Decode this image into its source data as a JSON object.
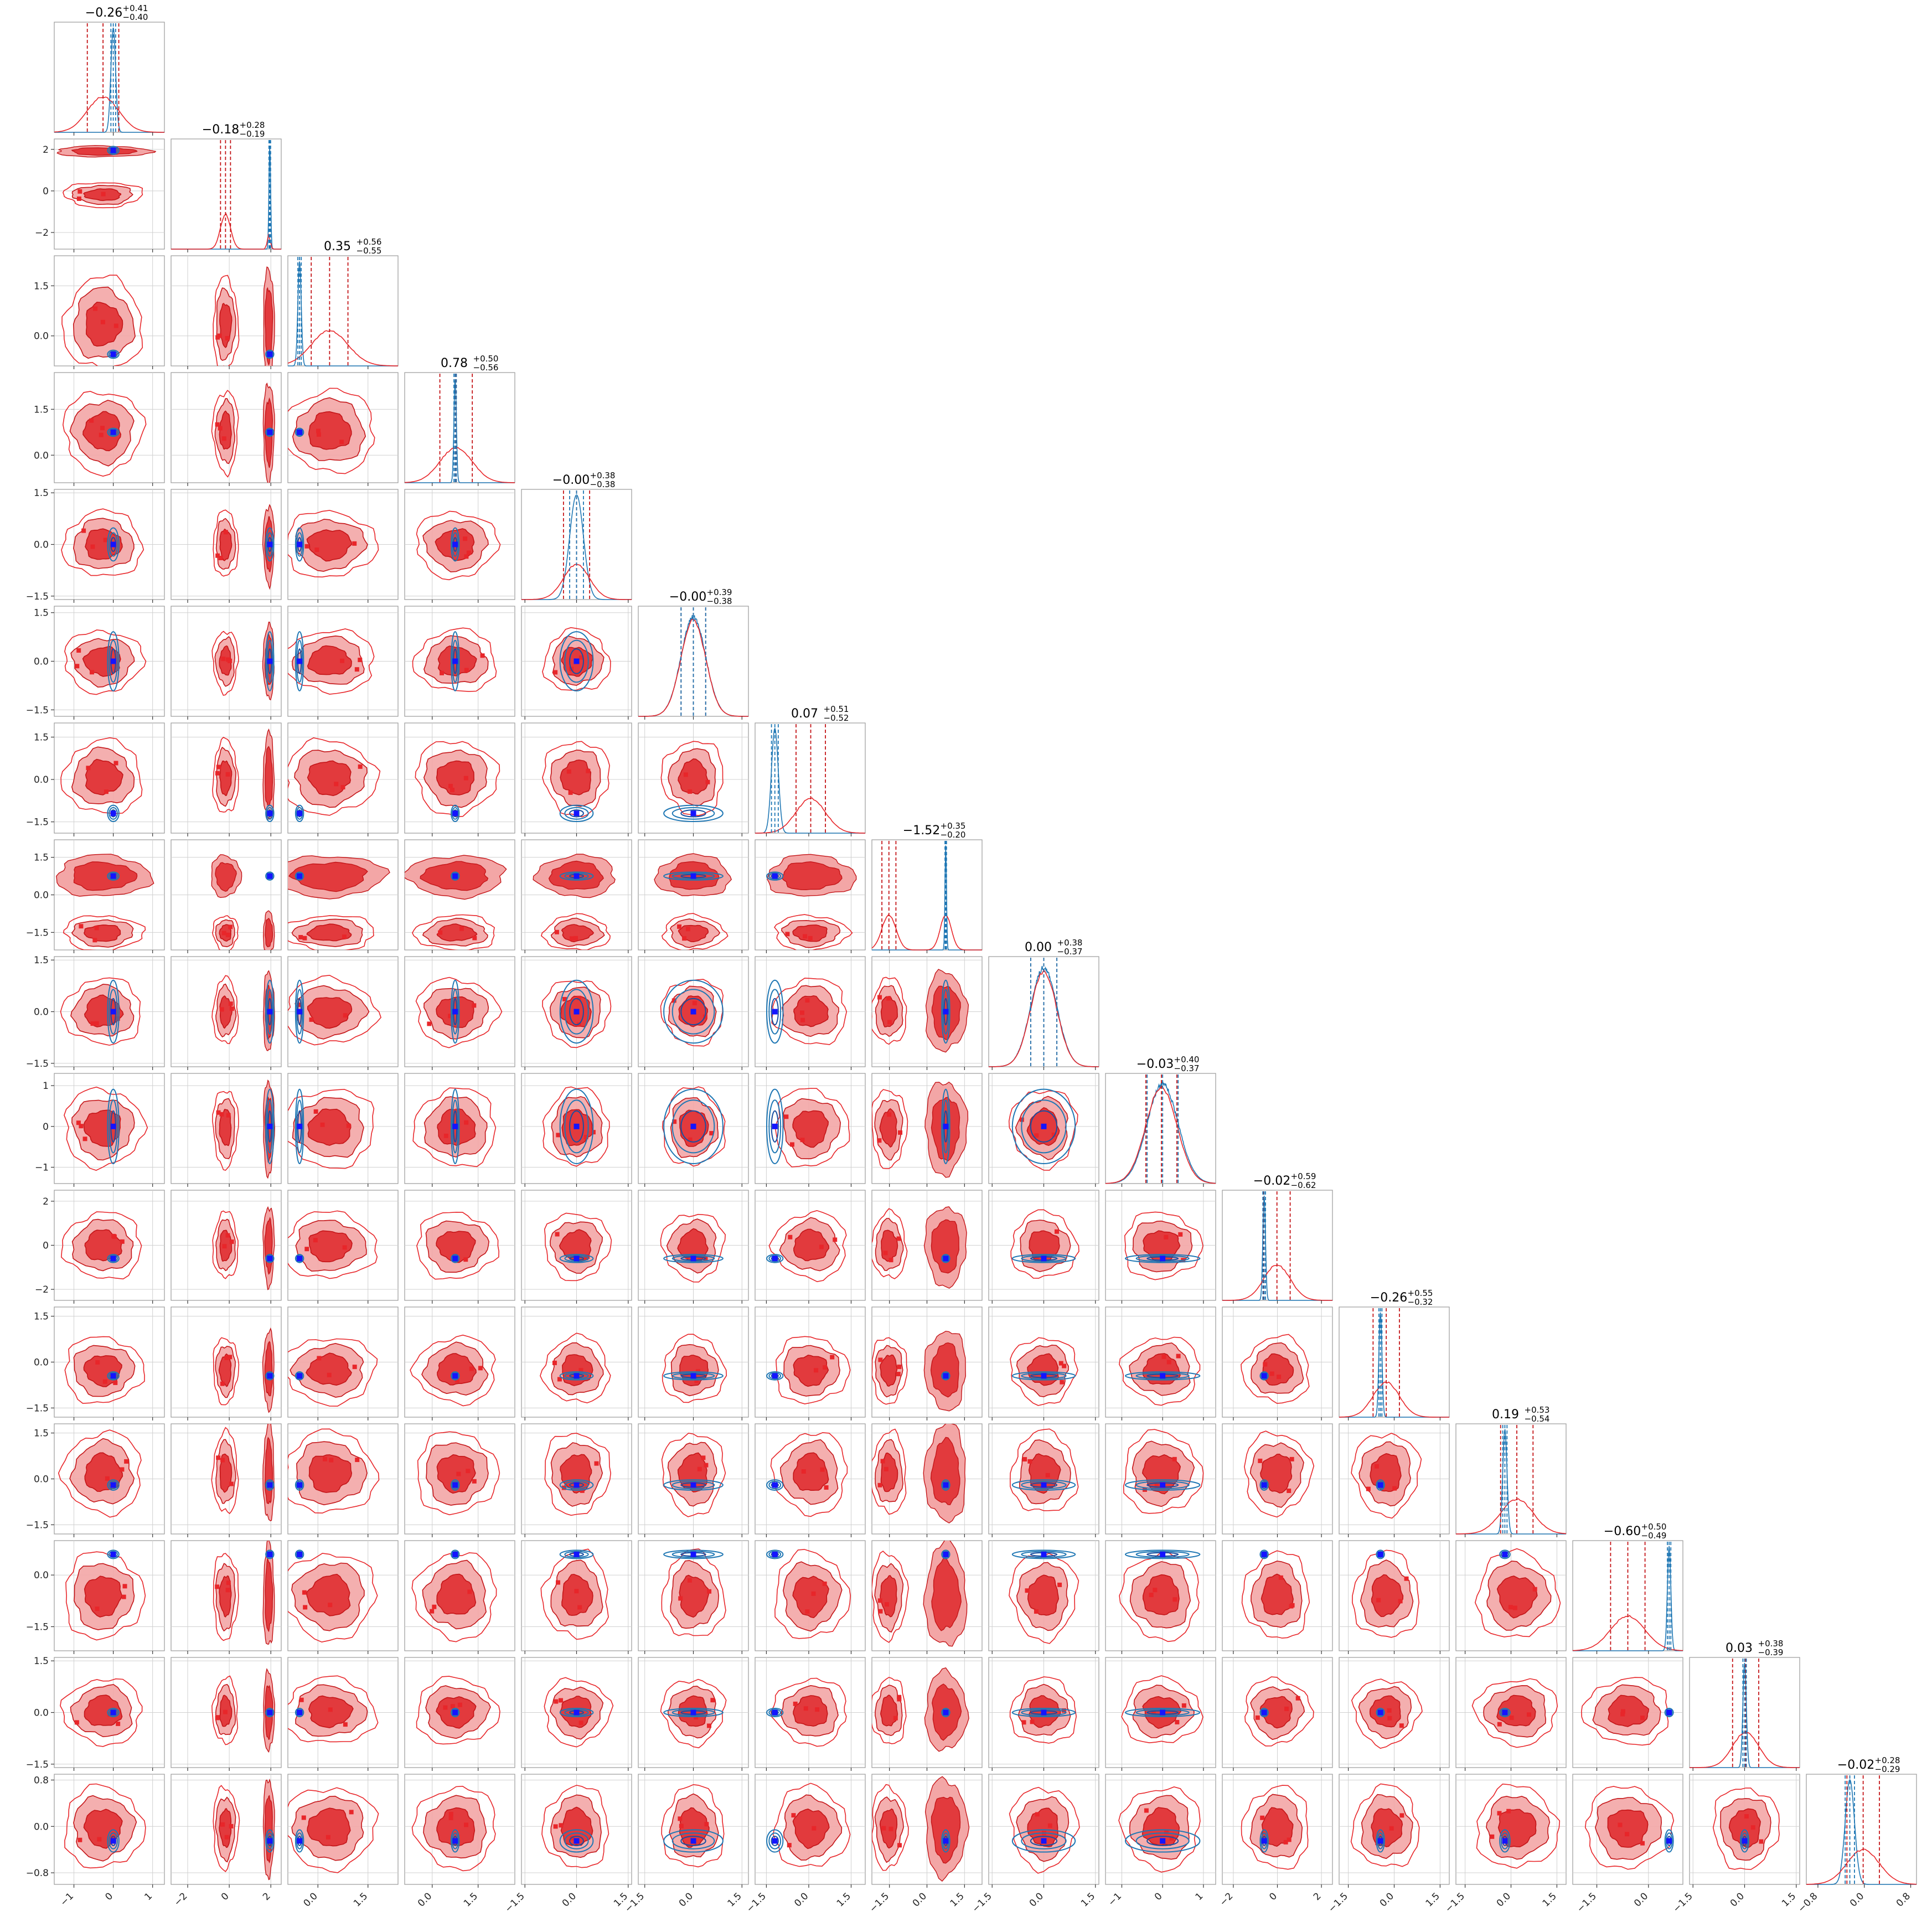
{
  "colors": {
    "red": "#e8262a",
    "red_dark": "#c41518",
    "red_light": "#f3a6a6",
    "red_mid": "#e23a3d",
    "blue": "#1f77b4",
    "blue_dark": "#1a4fa0",
    "marker_blue": "#1414ff",
    "grid": "#d0d0d0"
  },
  "chart_data": {
    "type": "corner",
    "dimensions": 16,
    "grid": true,
    "titles": [
      {
        "median": "−0.26",
        "plus": "+0.41",
        "minus": "−0.40"
      },
      {
        "median": "−0.18",
        "plus": "+0.28",
        "minus": "−0.19"
      },
      {
        "median": "0.35",
        "plus": "+0.56",
        "minus": "−0.55"
      },
      {
        "median": "0.78",
        "plus": "+0.50",
        "minus": "−0.56"
      },
      {
        "median": "−0.00",
        "plus": "+0.38",
        "minus": "−0.38"
      },
      {
        "median": "−0.00",
        "plus": "+0.39",
        "minus": "−0.38"
      },
      {
        "median": "0.07",
        "plus": "+0.51",
        "minus": "−0.52"
      },
      {
        "median": "−1.52",
        "plus": "+0.35",
        "minus": "−0.20"
      },
      {
        "median": "0.00",
        "plus": "+0.38",
        "minus": "−0.37"
      },
      {
        "median": "−0.03",
        "plus": "+0.40",
        "minus": "−0.37"
      },
      {
        "median": "−0.02",
        "plus": "+0.59",
        "minus": "−0.62"
      },
      {
        "median": "−0.26",
        "plus": "+0.55",
        "minus": "−0.32"
      },
      {
        "median": "0.19",
        "plus": "+0.53",
        "minus": "−0.54"
      },
      {
        "median": "−0.60",
        "plus": "+0.50",
        "minus": "−0.49"
      },
      {
        "median": "0.03",
        "plus": "+0.38",
        "minus": "−0.39"
      },
      {
        "median": "−0.02",
        "plus": "+0.28",
        "minus": "−0.29"
      }
    ],
    "ranges": [
      [
        -1.5,
        1.3
      ],
      [
        -2.8,
        2.5
      ],
      [
        -0.9,
        2.4
      ],
      [
        -0.9,
        2.7
      ],
      [
        -1.6,
        1.6
      ],
      [
        -1.7,
        1.7
      ],
      [
        -1.9,
        2.0
      ],
      [
        -2.2,
        2.2
      ],
      [
        -1.6,
        1.6
      ],
      [
        -1.4,
        1.3
      ],
      [
        -2.5,
        2.5
      ],
      [
        -1.8,
        1.8
      ],
      [
        -1.8,
        1.8
      ],
      [
        -2.2,
        1.0
      ],
      [
        -1.6,
        1.6
      ],
      [
        -1.0,
        0.9
      ]
    ],
    "y_ticks": [
      [],
      [
        {
          "v": 2,
          "t": "2"
        },
        {
          "v": 0,
          "t": "0"
        },
        {
          "v": -2,
          "t": "−2"
        }
      ],
      [
        {
          "v": 1.5,
          "t": "1.5"
        },
        {
          "v": 0,
          "t": "0.0"
        }
      ],
      [
        {
          "v": 1.5,
          "t": "1.5"
        },
        {
          "v": 0,
          "t": "0.0"
        }
      ],
      [
        {
          "v": 1.5,
          "t": "1.5"
        },
        {
          "v": 0,
          "t": "0.0"
        },
        {
          "v": -1.5,
          "t": "−1.5"
        }
      ],
      [
        {
          "v": 1.5,
          "t": "1.5"
        },
        {
          "v": 0,
          "t": "0.0"
        },
        {
          "v": -1.5,
          "t": "−1.5"
        }
      ],
      [
        {
          "v": 1.5,
          "t": "1.5"
        },
        {
          "v": 0,
          "t": "0.0"
        },
        {
          "v": -1.5,
          "t": "−1.5"
        }
      ],
      [
        {
          "v": 1.5,
          "t": "1.5"
        },
        {
          "v": 0,
          "t": "0.0"
        },
        {
          "v": -1.5,
          "t": "−1.5"
        }
      ],
      [
        {
          "v": 1.5,
          "t": "1.5"
        },
        {
          "v": 0,
          "t": "0.0"
        },
        {
          "v": -1.5,
          "t": "−1.5"
        }
      ],
      [
        {
          "v": 1,
          "t": "1"
        },
        {
          "v": 0,
          "t": "0"
        },
        {
          "v": -1,
          "t": "−1"
        }
      ],
      [
        {
          "v": 2,
          "t": "2"
        },
        {
          "v": 0,
          "t": "0"
        },
        {
          "v": -2,
          "t": "−2"
        }
      ],
      [
        {
          "v": 1.5,
          "t": "1.5"
        },
        {
          "v": 0,
          "t": "0.0"
        },
        {
          "v": -1.5,
          "t": "−1.5"
        }
      ],
      [
        {
          "v": 1.5,
          "t": "1.5"
        },
        {
          "v": 0,
          "t": "0.0"
        },
        {
          "v": -1.5,
          "t": "−1.5"
        }
      ],
      [
        {
          "v": 0,
          "t": "0.0"
        },
        {
          "v": -1.5,
          "t": "−1.5"
        }
      ],
      [
        {
          "v": 1.5,
          "t": "1.5"
        },
        {
          "v": 0,
          "t": "0.0"
        },
        {
          "v": -1.5,
          "t": "−1.5"
        }
      ],
      [
        {
          "v": 0.8,
          "t": "0.8"
        },
        {
          "v": 0,
          "t": "0.0"
        },
        {
          "v": -0.8,
          "t": "−0.8"
        }
      ]
    ],
    "x_ticks": [
      [
        {
          "v": -1,
          "t": "−1"
        },
        {
          "v": 0,
          "t": "0"
        },
        {
          "v": 1,
          "t": "1"
        }
      ],
      [
        {
          "v": -2,
          "t": "−2"
        },
        {
          "v": 0,
          "t": "0"
        },
        {
          "v": 2,
          "t": "2"
        }
      ],
      [
        {
          "v": 0,
          "t": "0.0"
        },
        {
          "v": 1.5,
          "t": "1.5"
        }
      ],
      [
        {
          "v": 0,
          "t": "0.0"
        },
        {
          "v": 1.5,
          "t": "1.5"
        }
      ],
      [
        {
          "v": -1.5,
          "t": "−1.5"
        },
        {
          "v": 0,
          "t": "0.0"
        },
        {
          "v": 1.5,
          "t": "1.5"
        }
      ],
      [
        {
          "v": -1.5,
          "t": "−1.5"
        },
        {
          "v": 0,
          "t": "0.0"
        },
        {
          "v": 1.5,
          "t": "1.5"
        }
      ],
      [
        {
          "v": -1.5,
          "t": "−1.5"
        },
        {
          "v": 0,
          "t": "0.0"
        },
        {
          "v": 1.5,
          "t": "1.5"
        }
      ],
      [
        {
          "v": -1.5,
          "t": "−1.5"
        },
        {
          "v": 0,
          "t": "0.0"
        },
        {
          "v": 1.5,
          "t": "1.5"
        }
      ],
      [
        {
          "v": -1.5,
          "t": "−1.5"
        },
        {
          "v": 0,
          "t": "0.0"
        },
        {
          "v": 1.5,
          "t": "1.5"
        }
      ],
      [
        {
          "v": -1,
          "t": "−1"
        },
        {
          "v": 0,
          "t": "0"
        },
        {
          "v": 1,
          "t": "1"
        }
      ],
      [
        {
          "v": -2,
          "t": "−2"
        },
        {
          "v": 0,
          "t": "0"
        },
        {
          "v": 2,
          "t": "2"
        }
      ],
      [
        {
          "v": -1.5,
          "t": "−1.5"
        },
        {
          "v": 0,
          "t": "0.0"
        },
        {
          "v": 1.5,
          "t": "1.5"
        }
      ],
      [
        {
          "v": -1.5,
          "t": "−1.5"
        },
        {
          "v": 0,
          "t": "0.0"
        },
        {
          "v": 1.5,
          "t": "1.5"
        }
      ],
      [
        {
          "v": -1.5,
          "t": "−1.5"
        },
        {
          "v": 0,
          "t": "0.0"
        }
      ],
      [
        {
          "v": -1.5,
          "t": "−1.5"
        },
        {
          "v": 0,
          "t": "0.0"
        },
        {
          "v": 1.5,
          "t": "1.5"
        }
      ],
      [
        {
          "v": -0.8,
          "t": "−0.8"
        },
        {
          "v": 0,
          "t": "0.0"
        },
        {
          "v": 0.8,
          "t": "0.8"
        }
      ]
    ],
    "red_posterior": {
      "center": [
        -0.26,
        -0.18,
        0.35,
        0.78,
        0.0,
        0.0,
        0.07,
        -1.52,
        0.0,
        -0.03,
        -0.02,
        -0.26,
        0.19,
        -0.6,
        0.03,
        -0.02
      ],
      "sigma": [
        0.4,
        0.24,
        0.55,
        0.53,
        0.38,
        0.38,
        0.52,
        0.28,
        0.38,
        0.38,
        0.6,
        0.43,
        0.53,
        0.5,
        0.38,
        0.28
      ],
      "secondary_modes": {
        "dim_1": {
          "center": 1.9,
          "sigma": 0.07,
          "weight": 0.12
        },
        "dim_7": {
          "center": 0.75,
          "sigma": 0.22,
          "weight": 0.25
        }
      }
    },
    "blue_posterior": {
      "center": [
        0.0,
        1.95,
        -0.55,
        0.75,
        0.0,
        0.0,
        -1.2,
        0.75,
        0.0,
        0.0,
        -0.6,
        -0.45,
        -0.2,
        0.6,
        0.0,
        -0.25
      ],
      "sigma": [
        0.06,
        0.04,
        0.05,
        0.04,
        0.2,
        0.38,
        0.12,
        0.03,
        0.38,
        0.38,
        0.06,
        0.05,
        0.07,
        0.05,
        0.05,
        0.08
      ]
    },
    "truth_markers": [
      0.0,
      1.95,
      -0.55,
      0.75,
      0.0,
      0.0,
      -1.2,
      0.75,
      0.0,
      0.0,
      -0.6,
      -0.45,
      -0.2,
      0.6,
      0.0,
      -0.25
    ]
  }
}
